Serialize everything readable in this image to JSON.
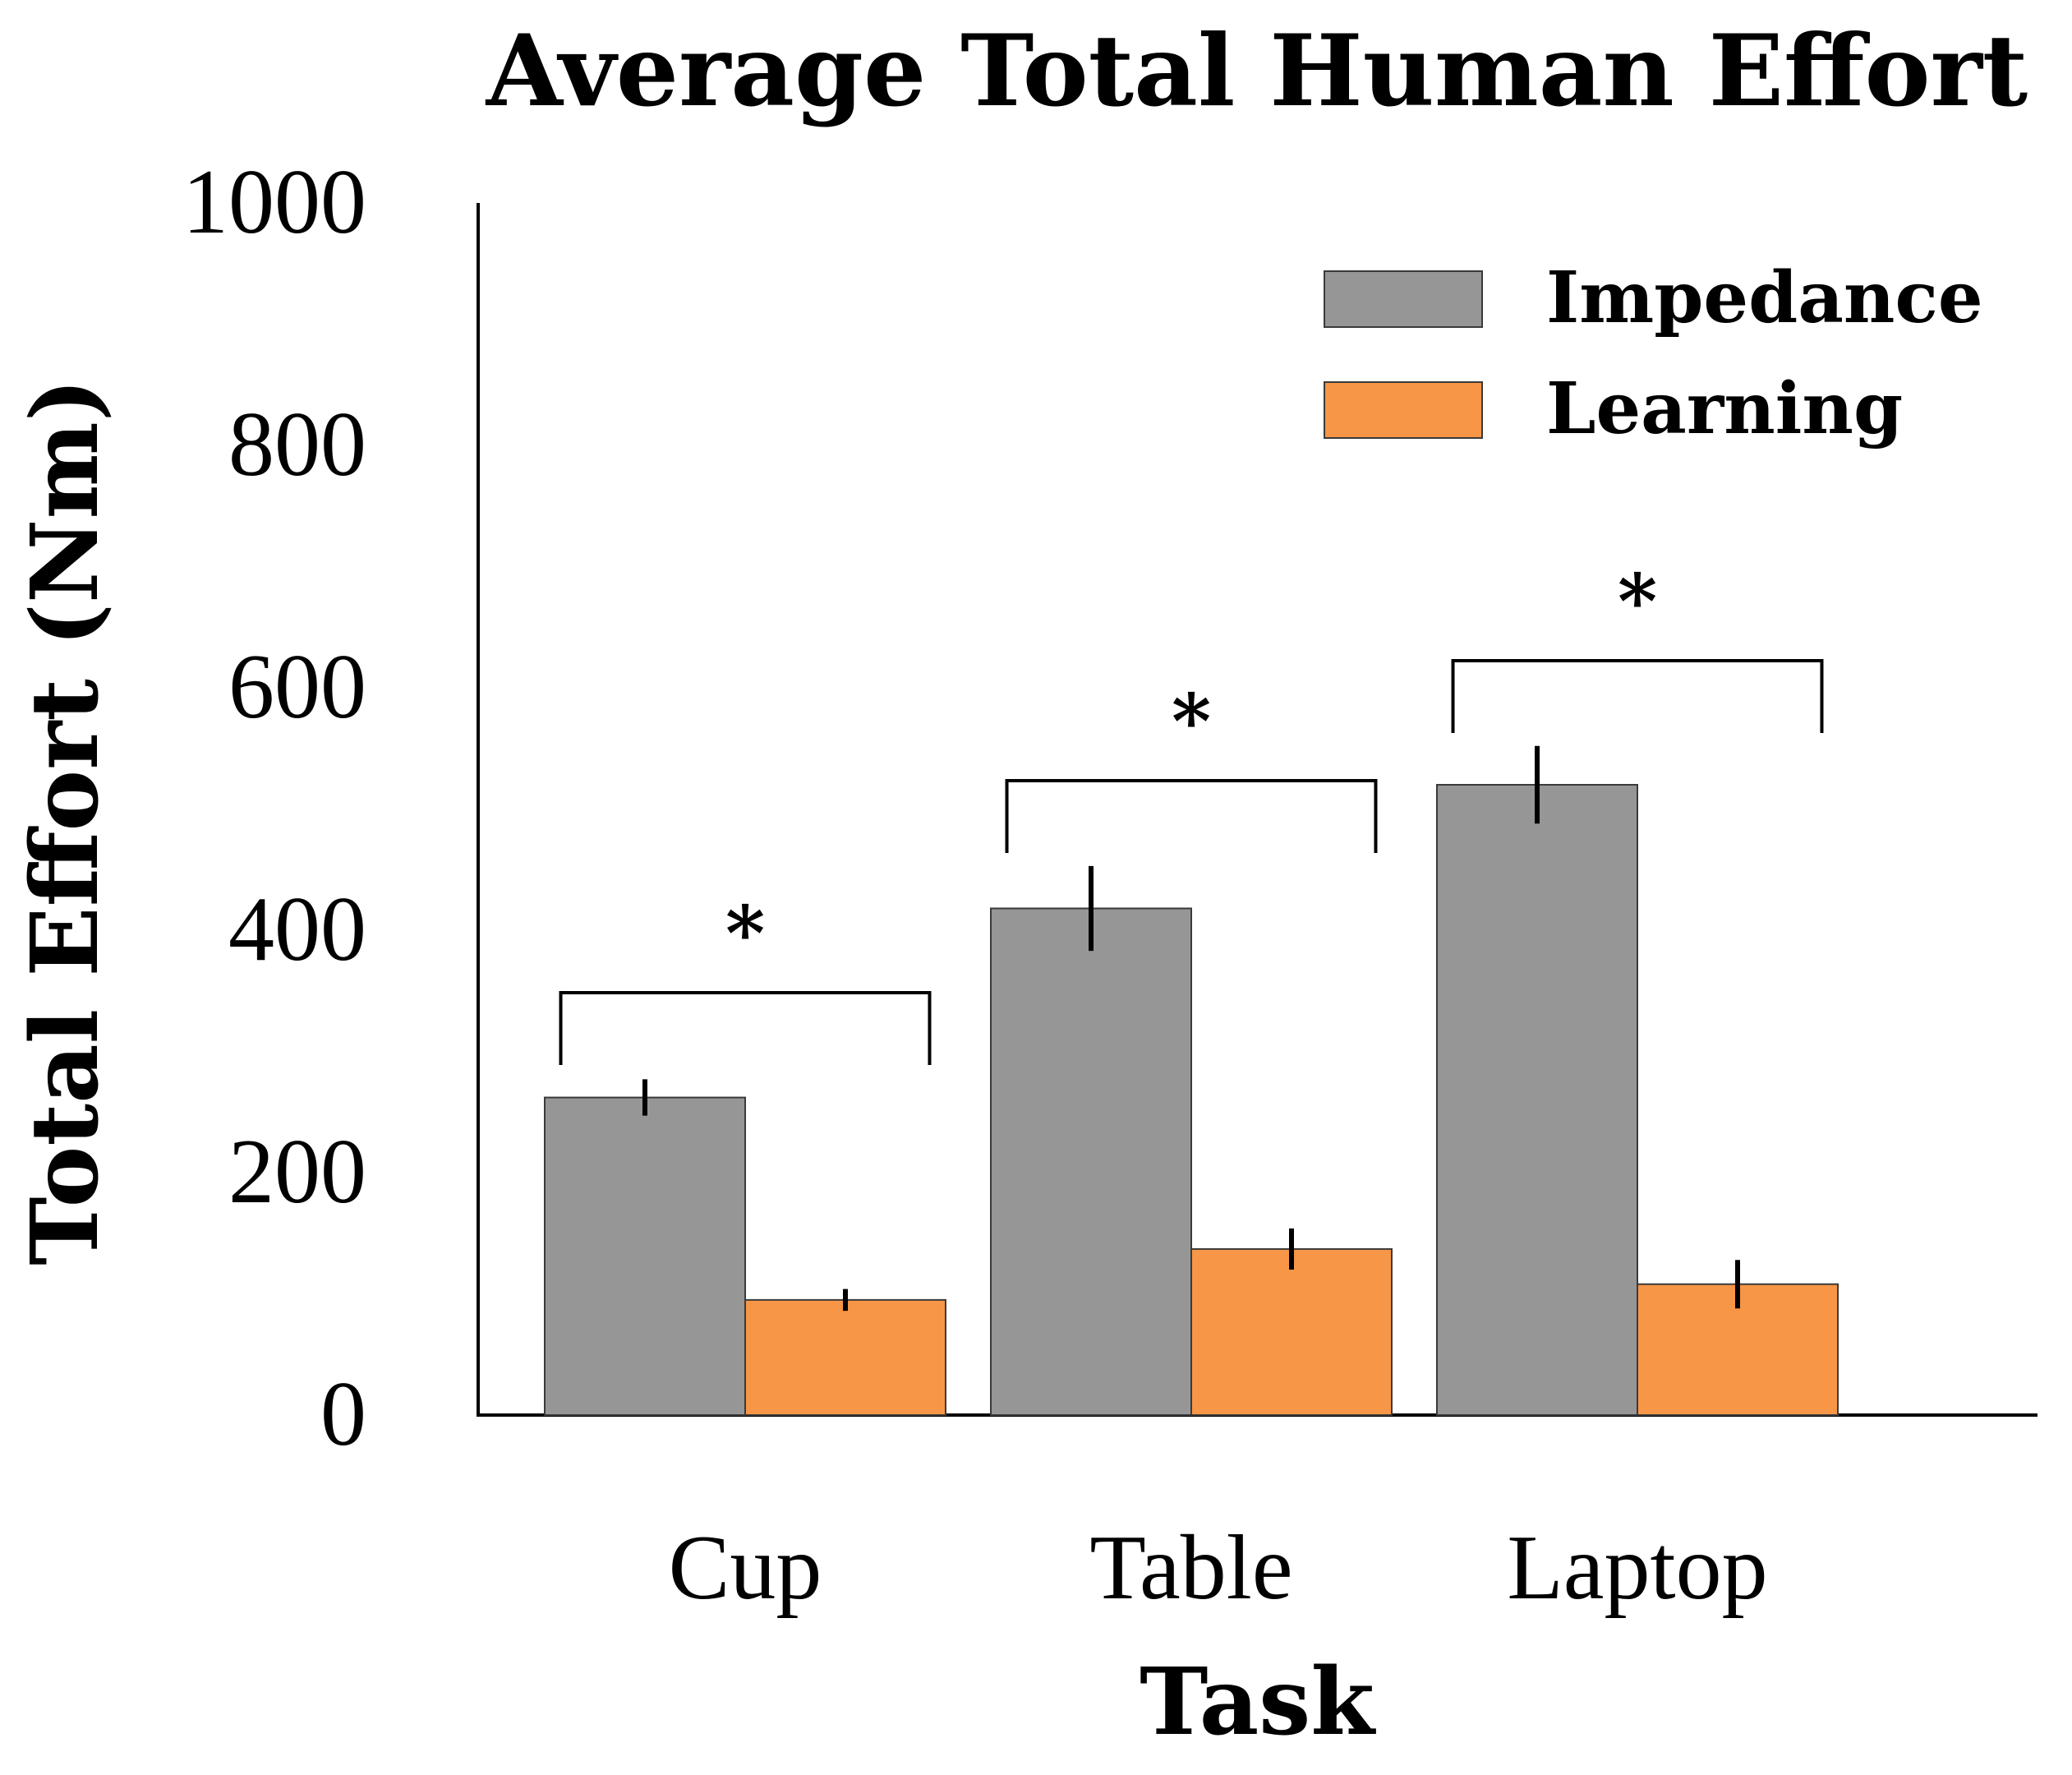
{
  "chart_data": {
    "type": "bar",
    "title": "Average Total Human Effort",
    "xlabel": "Task",
    "ylabel": "Total Effort (Nm)",
    "categories": [
      "Cup",
      "Table",
      "Laptop"
    ],
    "ylim": [
      0,
      1000
    ],
    "yticks": [
      "0",
      "200",
      "400",
      "600",
      "800",
      "1000"
    ],
    "grid": false,
    "legend_position": "top-right",
    "series": [
      {
        "name": "Impedance",
        "color": "#969696",
        "values": [
          262,
          418,
          520
        ],
        "errors": [
          15,
          35,
          32
        ]
      },
      {
        "name": "Learning",
        "color": "#f79646",
        "values": [
          95,
          137,
          108
        ],
        "errors": [
          9,
          17,
          20
        ]
      }
    ],
    "annotations": [
      {
        "text": "*",
        "category": "Cup"
      },
      {
        "text": "*",
        "category": "Table"
      },
      {
        "text": "*",
        "category": "Laptop"
      }
    ]
  }
}
